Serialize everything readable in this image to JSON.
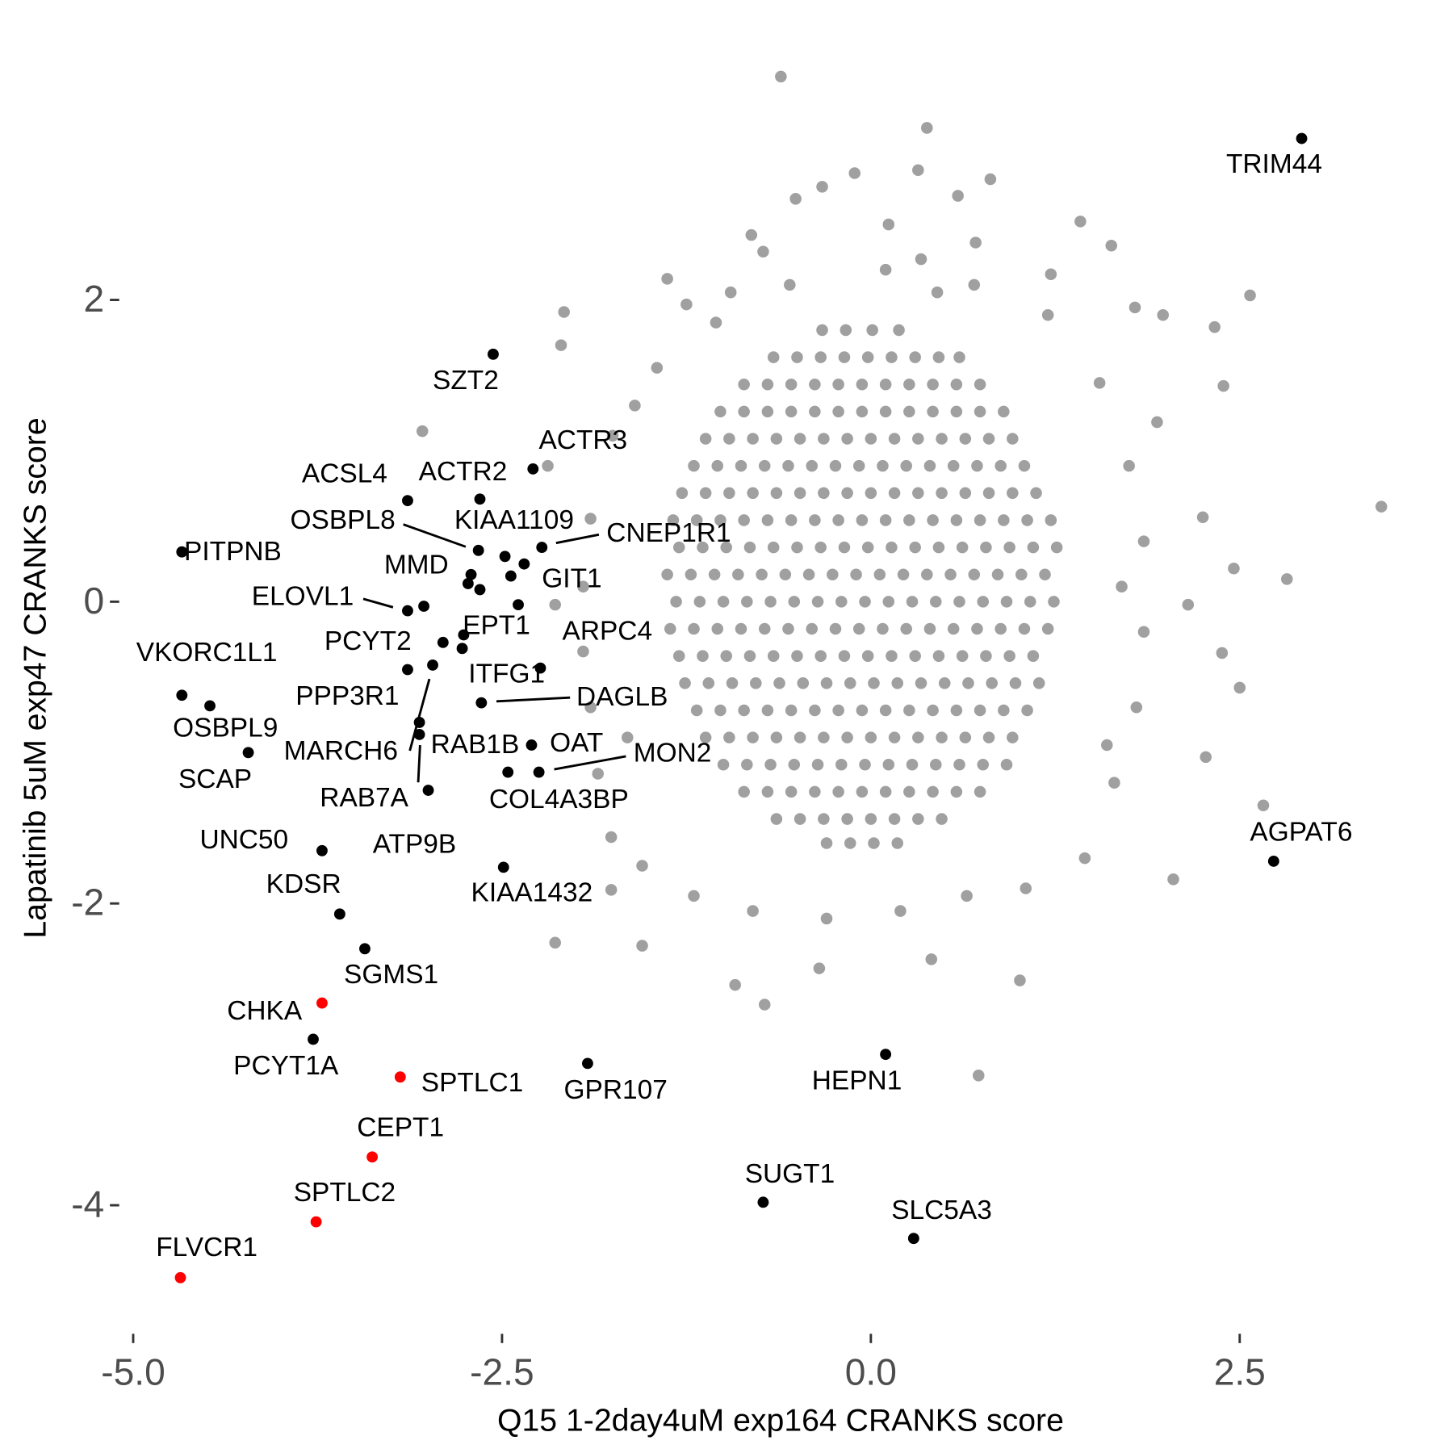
{
  "chart_data": {
    "type": "scatter",
    "x_label": "Q15 1-2day4uM exp164 CRANKS score",
    "y_label": "Lapatinib 5uM exp47 CRANKS score",
    "xlim": [
      -5.5,
      3.75
    ],
    "ylim": [
      -4.8,
      3.75
    ],
    "xticks": [
      {
        "value": -5,
        "label": "-5.0"
      },
      {
        "value": -2.5,
        "label": "-2.5"
      },
      {
        "value": 0,
        "label": "0.0"
      },
      {
        "value": 2.5,
        "label": "2.5"
      }
    ],
    "yticks": [
      2,
      0,
      -2,
      -4
    ],
    "series": [
      {
        "color": "#a0a0a0",
        "x": [
          -0.33,
          -0.17,
          0.01,
          0.19,
          -0.66,
          -0.5,
          -0.34,
          -0.18,
          -0.02,
          0.14,
          0.3,
          0.46,
          0.6,
          -0.86,
          -0.7,
          -0.54,
          -0.38,
          -0.22,
          -0.06,
          0.1,
          0.26,
          0.42,
          0.58,
          0.74,
          -1.02,
          -0.86,
          -0.7,
          -0.54,
          -0.38,
          -0.22,
          -0.06,
          0.1,
          0.26,
          0.42,
          0.58,
          0.74,
          0.9,
          -1.12,
          -0.96,
          -0.8,
          -0.64,
          -0.48,
          -0.32,
          -0.16,
          0.0,
          0.16,
          0.32,
          0.48,
          0.64,
          0.8,
          0.96,
          -1.2,
          -1.04,
          -0.88,
          -0.72,
          -0.56,
          -0.4,
          -0.24,
          -0.08,
          0.08,
          0.24,
          0.4,
          0.56,
          0.72,
          0.88,
          1.04,
          -1.28,
          -1.12,
          -0.96,
          -0.8,
          -0.64,
          -0.48,
          -0.32,
          -0.16,
          0.0,
          0.16,
          0.32,
          0.48,
          0.64,
          0.8,
          0.96,
          1.12,
          -1.34,
          -1.18,
          -1.02,
          -0.86,
          -0.7,
          -0.54,
          -0.38,
          -0.22,
          -0.06,
          0.1,
          0.26,
          0.42,
          0.58,
          0.74,
          0.9,
          1.06,
          1.22,
          -1.3,
          -1.14,
          -0.98,
          -0.82,
          -0.66,
          -0.5,
          -0.34,
          -0.18,
          -0.02,
          0.14,
          0.3,
          0.46,
          0.62,
          0.78,
          0.94,
          1.1,
          1.26,
          -1.38,
          -1.22,
          -1.06,
          -0.9,
          -0.74,
          -0.58,
          -0.42,
          -0.26,
          -0.1,
          0.06,
          0.22,
          0.38,
          0.54,
          0.7,
          0.86,
          1.02,
          1.18,
          -1.32,
          -1.16,
          -1.0,
          -0.84,
          -0.68,
          -0.52,
          -0.36,
          -0.2,
          -0.04,
          0.12,
          0.28,
          0.44,
          0.6,
          0.76,
          0.92,
          1.08,
          1.24,
          -1.36,
          -1.2,
          -1.04,
          -0.88,
          -0.72,
          -0.56,
          -0.4,
          -0.24,
          -0.08,
          0.08,
          0.24,
          0.4,
          0.56,
          0.72,
          0.88,
          1.04,
          1.2,
          -1.3,
          -1.14,
          -0.98,
          -0.82,
          -0.66,
          -0.5,
          -0.34,
          -0.18,
          -0.02,
          0.14,
          0.3,
          0.46,
          0.62,
          0.78,
          0.94,
          1.1,
          -1.26,
          -1.1,
          -0.94,
          -0.78,
          -0.62,
          -0.46,
          -0.3,
          -0.14,
          0.02,
          0.18,
          0.34,
          0.5,
          0.66,
          0.82,
          0.98,
          1.14,
          -1.18,
          -1.02,
          -0.86,
          -0.7,
          -0.54,
          -0.38,
          -0.22,
          -0.06,
          0.1,
          0.26,
          0.42,
          0.58,
          0.74,
          0.9,
          1.06,
          -1.12,
          -0.96,
          -0.8,
          -0.64,
          -0.48,
          -0.32,
          -0.16,
          0.0,
          0.16,
          0.32,
          0.48,
          0.64,
          0.8,
          0.96,
          -1.0,
          -0.84,
          -0.68,
          -0.52,
          -0.36,
          -0.2,
          -0.04,
          0.12,
          0.28,
          0.44,
          0.6,
          0.76,
          0.92,
          -0.86,
          -0.7,
          -0.54,
          -0.38,
          -0.22,
          -0.06,
          0.1,
          0.26,
          0.42,
          0.58,
          0.74,
          -0.64,
          -0.48,
          -0.32,
          -0.16,
          0.0,
          0.16,
          0.32,
          0.48,
          -0.3,
          -0.14,
          0.02,
          0.18,
          -0.61,
          0.38,
          3.46,
          2.82,
          2.57,
          2.33,
          2.39,
          2.5,
          2.38,
          2.27,
          2.66,
          2.05,
          0.73,
          -0.72,
          -0.92,
          1.01,
          -3.04,
          -2.08,
          -2.1,
          -2.19,
          1.42,
          1.98,
          1.79,
          1.63,
          -0.11,
          -0.33,
          -0.51,
          0.32,
          0.81,
          0.59,
          -0.81,
          -0.73,
          0.12,
          0.34,
          0.71,
          1.22,
          -1.38,
          -1.25,
          -2.14,
          -1.55,
          -1.76,
          -0.35,
          0.41,
          2.15,
          2.46,
          2.25,
          1.94,
          -2.14,
          -1.95,
          -1.9,
          -1.85,
          -1.76,
          -1.55,
          -1.2,
          -0.8,
          -0.3,
          0.2,
          0.65,
          1.05,
          1.45,
          1.65,
          1.8,
          1.85,
          1.85,
          1.75,
          1.55,
          1.2,
          0.7,
          0.1,
          -0.55,
          -1.05,
          -1.45,
          -1.75,
          -1.9,
          -1.95,
          -1.6,
          -1.65,
          1.6,
          1.7,
          -0.95,
          0.45
        ],
        "y": [
          1.8,
          1.8,
          1.8,
          1.8,
          1.62,
          1.62,
          1.62,
          1.62,
          1.62,
          1.62,
          1.62,
          1.62,
          1.62,
          1.44,
          1.44,
          1.44,
          1.44,
          1.44,
          1.44,
          1.44,
          1.44,
          1.44,
          1.44,
          1.44,
          1.26,
          1.26,
          1.26,
          1.26,
          1.26,
          1.26,
          1.26,
          1.26,
          1.26,
          1.26,
          1.26,
          1.26,
          1.26,
          1.08,
          1.08,
          1.08,
          1.08,
          1.08,
          1.08,
          1.08,
          1.08,
          1.08,
          1.08,
          1.08,
          1.08,
          1.08,
          1.08,
          0.9,
          0.9,
          0.9,
          0.9,
          0.9,
          0.9,
          0.9,
          0.9,
          0.9,
          0.9,
          0.9,
          0.9,
          0.9,
          0.9,
          0.9,
          0.72,
          0.72,
          0.72,
          0.72,
          0.72,
          0.72,
          0.72,
          0.72,
          0.72,
          0.72,
          0.72,
          0.72,
          0.72,
          0.72,
          0.72,
          0.72,
          0.54,
          0.54,
          0.54,
          0.54,
          0.54,
          0.54,
          0.54,
          0.54,
          0.54,
          0.54,
          0.54,
          0.54,
          0.54,
          0.54,
          0.54,
          0.54,
          0.54,
          0.36,
          0.36,
          0.36,
          0.36,
          0.36,
          0.36,
          0.36,
          0.36,
          0.36,
          0.36,
          0.36,
          0.36,
          0.36,
          0.36,
          0.36,
          0.36,
          0.36,
          0.18,
          0.18,
          0.18,
          0.18,
          0.18,
          0.18,
          0.18,
          0.18,
          0.18,
          0.18,
          0.18,
          0.18,
          0.18,
          0.18,
          0.18,
          0.18,
          0.18,
          0.0,
          0.0,
          0.0,
          0.0,
          0.0,
          0.0,
          0.0,
          0.0,
          0.0,
          0.0,
          0.0,
          0.0,
          0.0,
          0.0,
          0.0,
          0.0,
          0.0,
          -0.18,
          -0.18,
          -0.18,
          -0.18,
          -0.18,
          -0.18,
          -0.18,
          -0.18,
          -0.18,
          -0.18,
          -0.18,
          -0.18,
          -0.18,
          -0.18,
          -0.18,
          -0.18,
          -0.18,
          -0.36,
          -0.36,
          -0.36,
          -0.36,
          -0.36,
          -0.36,
          -0.36,
          -0.36,
          -0.36,
          -0.36,
          -0.36,
          -0.36,
          -0.36,
          -0.36,
          -0.36,
          -0.36,
          -0.54,
          -0.54,
          -0.54,
          -0.54,
          -0.54,
          -0.54,
          -0.54,
          -0.54,
          -0.54,
          -0.54,
          -0.54,
          -0.54,
          -0.54,
          -0.54,
          -0.54,
          -0.54,
          -0.72,
          -0.72,
          -0.72,
          -0.72,
          -0.72,
          -0.72,
          -0.72,
          -0.72,
          -0.72,
          -0.72,
          -0.72,
          -0.72,
          -0.72,
          -0.72,
          -0.72,
          -0.9,
          -0.9,
          -0.9,
          -0.9,
          -0.9,
          -0.9,
          -0.9,
          -0.9,
          -0.9,
          -0.9,
          -0.9,
          -0.9,
          -0.9,
          -0.9,
          -1.08,
          -1.08,
          -1.08,
          -1.08,
          -1.08,
          -1.08,
          -1.08,
          -1.08,
          -1.08,
          -1.08,
          -1.08,
          -1.08,
          -1.08,
          -1.26,
          -1.26,
          -1.26,
          -1.26,
          -1.26,
          -1.26,
          -1.26,
          -1.26,
          -1.26,
          -1.26,
          -1.26,
          -1.44,
          -1.44,
          -1.44,
          -1.44,
          -1.44,
          -1.44,
          -1.44,
          -1.44,
          -1.6,
          -1.6,
          -1.6,
          -1.6,
          3.48,
          3.14,
          0.63,
          0.15,
          2.03,
          1.82,
          1.43,
          -0.57,
          -0.34,
          -1.03,
          -1.35,
          -1.84,
          -3.14,
          -2.67,
          -2.54,
          -2.51,
          1.13,
          1.92,
          1.7,
          0.9,
          2.52,
          1.9,
          1.95,
          2.36,
          2.84,
          2.75,
          2.67,
          2.86,
          2.8,
          2.69,
          2.43,
          2.32,
          2.5,
          2.27,
          2.38,
          2.17,
          2.14,
          1.97,
          -2.26,
          -2.28,
          -1.91,
          -2.43,
          -2.37,
          -0.02,
          0.22,
          0.56,
          1.19,
          -0.02,
          -0.33,
          -0.7,
          -1.14,
          -1.56,
          -1.75,
          -1.95,
          -2.05,
          -2.1,
          -2.05,
          -1.95,
          -1.9,
          -1.7,
          -1.2,
          -0.7,
          -0.2,
          0.4,
          0.9,
          1.45,
          1.9,
          2.1,
          2.2,
          2.1,
          1.85,
          1.55,
          1.1,
          0.55,
          0.1,
          1.3,
          -0.9,
          -0.95,
          0.1,
          2.05,
          2.05
        ]
      },
      {
        "color": "#000000",
        "x": [
          2.92,
          -2.56,
          -2.29,
          -3.14,
          -2.65,
          -2.66,
          -2.48,
          -2.23,
          -4.67,
          -2.71,
          -2.44,
          -3.14,
          -2.76,
          -2.9,
          -2.24,
          -4.67,
          -2.77,
          -2.64,
          -3.14,
          -4.48,
          -2.97,
          -3.06,
          -2.3,
          -2.25,
          -4.22,
          -3.06,
          -2.46,
          -3.72,
          -3.0,
          -3.6,
          -2.49,
          2.73,
          -3.43,
          -3.78,
          -1.92,
          0.1,
          -0.73,
          0.29,
          -2.35,
          -2.73,
          -2.65,
          -2.39,
          -3.03
        ],
        "y": [
          3.07,
          1.64,
          0.88,
          0.67,
          0.68,
          0.34,
          0.3,
          0.36,
          0.33,
          0.18,
          0.17,
          -0.06,
          -0.22,
          -0.27,
          -0.44,
          -0.62,
          -0.31,
          -0.67,
          -0.45,
          -0.69,
          -0.42,
          -0.8,
          -0.95,
          -1.13,
          -1.0,
          -0.88,
          -1.13,
          -1.65,
          -1.25,
          -2.07,
          -1.76,
          -1.72,
          -2.3,
          -2.9,
          -3.06,
          -3.0,
          -3.98,
          -4.22,
          0.25,
          0.12,
          0.08,
          -0.02,
          -0.03
        ],
        "labels": [
          "TRIM44",
          "SZT2",
          "ACTR3",
          "ACSL4",
          "ACTR2",
          "OSBPL8",
          "KIAA1109",
          "CNEP1R1",
          "PITPNB",
          "MMD",
          "GIT1",
          "ELOVL1",
          "EPT1",
          "PCYT2",
          "ARPC4",
          "VKORC1L1",
          "ITFG1",
          "DAGLB",
          "PPP3R1",
          "OSBPL9",
          "MARCH6",
          "RAB1B",
          "OAT",
          "MON2",
          "SCAP",
          "RAB7A",
          "COL4A3BP",
          "UNC50",
          "ATP9B",
          "KDSR",
          "KIAA1432",
          "AGPAT6",
          "SGMS1",
          "PCYT1A",
          "GPR107",
          "HEPN1",
          "SUGT1",
          "SLC5A3",
          null,
          null,
          null,
          null,
          null
        ]
      },
      {
        "color": "#ff0000",
        "x": [
          -3.72,
          -3.19,
          -3.38,
          -3.76,
          -4.68
        ],
        "y": [
          -2.66,
          -3.15,
          -3.68,
          -4.11,
          -4.48
        ],
        "labels": [
          "CHKA",
          "SPTLC1",
          "CEPT1",
          "SPTLC2",
          "FLVCR1"
        ]
      }
    ]
  }
}
